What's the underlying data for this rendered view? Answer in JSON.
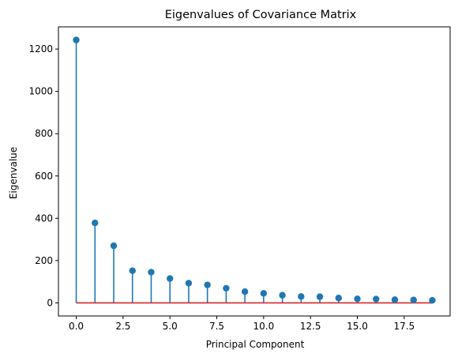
{
  "chart_data": {
    "type": "stem",
    "title": "Eigenvalues of Covariance Matrix",
    "xlabel": "Principal Component",
    "ylabel": "Eigenvalue",
    "x": [
      0,
      1,
      2,
      3,
      4,
      5,
      6,
      7,
      8,
      9,
      10,
      11,
      12,
      13,
      14,
      15,
      16,
      17,
      18,
      19
    ],
    "values": [
      1243,
      378,
      270,
      152,
      145,
      115,
      93,
      85,
      69,
      53,
      45,
      36,
      30,
      29,
      23,
      19,
      18,
      15,
      14,
      12
    ],
    "xlim": [
      -0.95,
      19.95
    ],
    "ylim": [
      -62,
      1305
    ],
    "xticks": [
      0.0,
      2.5,
      5.0,
      7.5,
      10.0,
      12.5,
      15.0,
      17.5
    ],
    "xtick_labels": [
      "0.0",
      "2.5",
      "5.0",
      "7.5",
      "10.0",
      "12.5",
      "15.0",
      "17.5"
    ],
    "yticks": [
      0,
      200,
      400,
      600,
      800,
      1000,
      1200
    ],
    "ytick_labels": [
      "0",
      "200",
      "400",
      "600",
      "800",
      "1000",
      "1200"
    ],
    "baseline": 0,
    "grid": false,
    "colors": {
      "stem": "#1f77b4",
      "marker": "#1f77b4",
      "baseline": "#d62728",
      "axes": "#000000"
    }
  }
}
